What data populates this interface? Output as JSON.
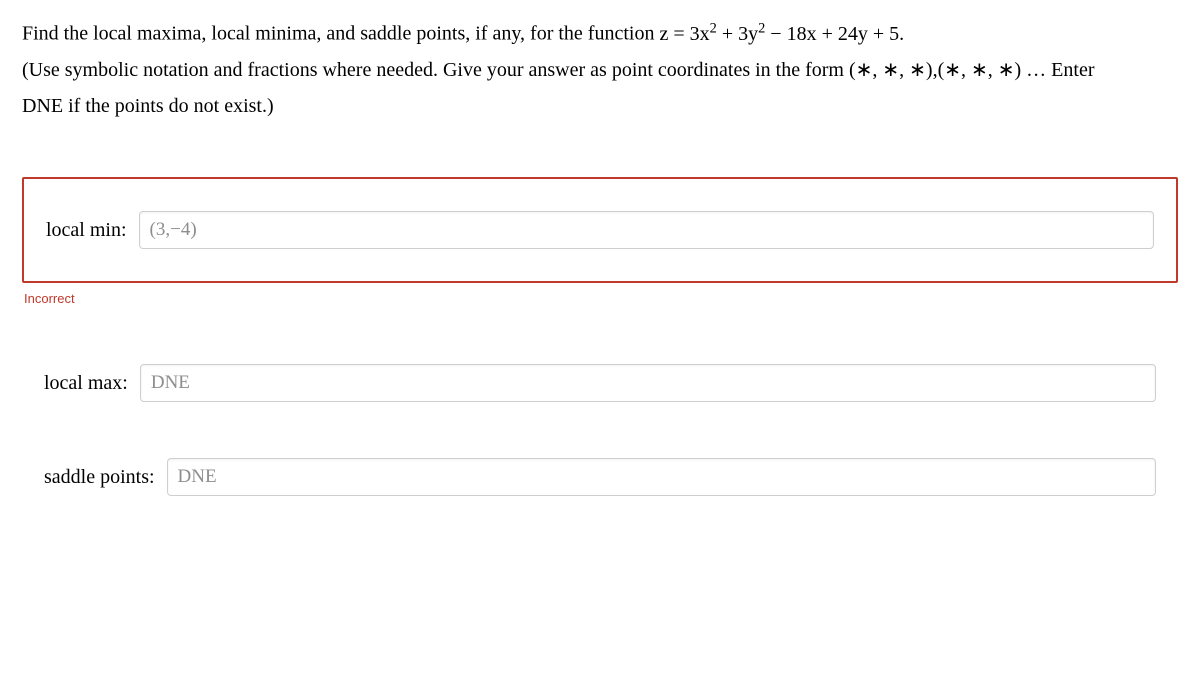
{
  "question": {
    "line1_pre": "Find the local maxima, local minima, and saddle points, if any, for the function ",
    "expr_z": "z = 3x",
    "expr_sq1": "2",
    "expr_mid1": " + 3y",
    "expr_sq2": "2",
    "expr_tail": " − 18x + 24y + 5.",
    "line2a": "(Use symbolic notation and fractions where needed. Give your answer as point coordinates in the form (∗, ∗, ∗),(∗, ∗, ∗) … Enter",
    "line2b": "DNE if the points do not exist.)"
  },
  "rows": {
    "local_min": {
      "label": "local min:",
      "value": "(3,−4)",
      "feedback": "Incorrect"
    },
    "local_max": {
      "label": "local max:",
      "value": "DNE"
    },
    "saddle": {
      "label": "saddle points:",
      "value": "DNE"
    }
  },
  "styles": {
    "error_border": "#c0392b",
    "input_border": "#cfcfcf",
    "input_text_color": "#8e8e8e",
    "background": "#ffffff",
    "font_size_body": 20,
    "font_size_feedback": 13
  }
}
